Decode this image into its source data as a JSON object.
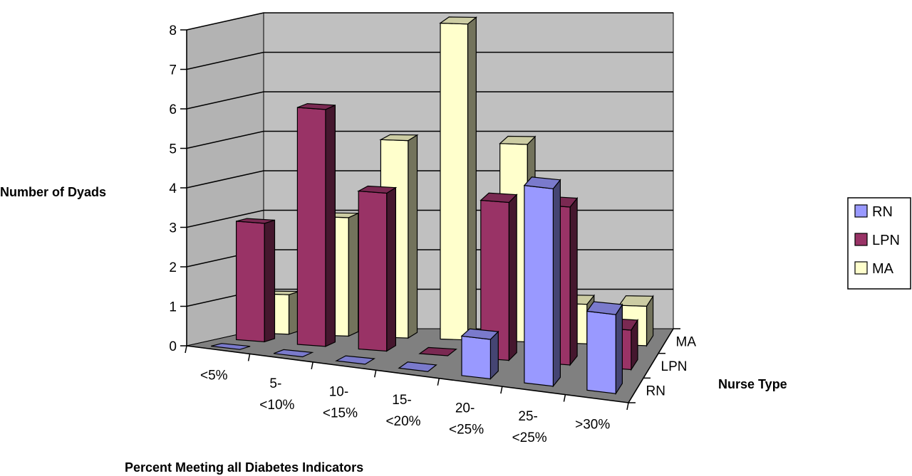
{
  "chart_data": {
    "type": "bar",
    "subtype": "3d-clustered-column",
    "title": "",
    "xlabel": "Percent Meeting all Diabetes Indicators",
    "ylabel": "Number of Dyads",
    "zlabel": "Nurse Type",
    "categories": [
      "<5%",
      "5-\n<10%",
      "10-\n<15%",
      "15-\n<20%",
      "20-\n<25%",
      "25-\n<25%",
      ">30%"
    ],
    "depth_labels": [
      "RN",
      "LPN",
      "MA"
    ],
    "y_ticks": [
      "0",
      "1",
      "2",
      "3",
      "4",
      "5",
      "6",
      "7",
      "8"
    ],
    "ylim": [
      0,
      8
    ],
    "grid": true,
    "legend_position": "right",
    "series": [
      {
        "name": "RN",
        "values": [
          0,
          0,
          0,
          0,
          1,
          5,
          2
        ],
        "color": "#9999ff"
      },
      {
        "name": "LPN",
        "values": [
          3,
          6,
          4,
          0,
          4,
          4,
          1
        ],
        "color": "#993366"
      },
      {
        "name": "MA",
        "values": [
          1,
          3,
          5,
          8,
          5,
          1,
          1
        ],
        "color": "#ffffcc"
      }
    ],
    "legend": [
      {
        "label": "RN",
        "color": "#9999ff"
      },
      {
        "label": "LPN",
        "color": "#993366"
      },
      {
        "label": "MA",
        "color": "#ffffcc"
      }
    ]
  }
}
